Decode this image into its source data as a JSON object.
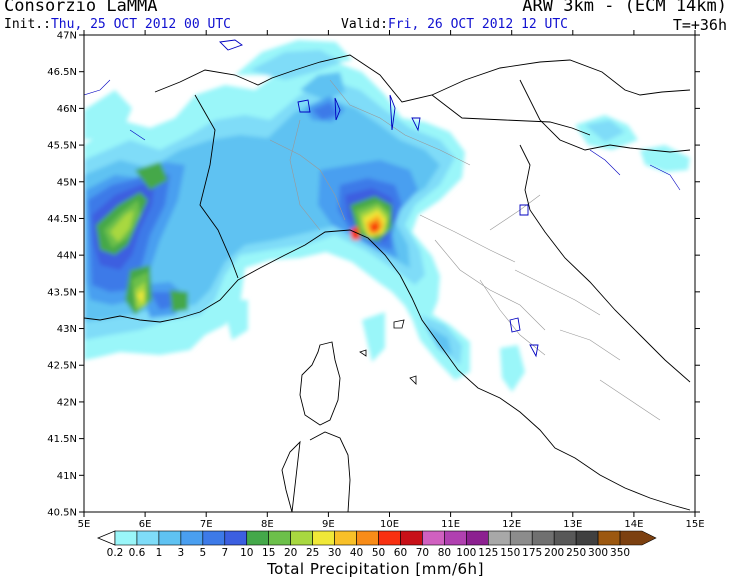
{
  "header": {
    "org": "Consorzio LaMMA",
    "model": "ARW 3km - (ECM 14km)",
    "init_label": "Init.:",
    "init_value": "Thu, 25 OCT 2012  00 UTC",
    "valid_label": "Valid:",
    "valid_value": "Fri, 26 OCT 2012  12 UTC",
    "step": "T=+36h"
  },
  "map": {
    "lat_labels": [
      "47N",
      "46.5N",
      "46N",
      "45.5N",
      "45N",
      "44.5N",
      "44N",
      "43.5N",
      "43N",
      "42.5N",
      "42N",
      "41.5N",
      "41N",
      "40.5N"
    ],
    "lon_labels": [
      "5E",
      "6E",
      "7E",
      "8E",
      "9E",
      "10E",
      "11E",
      "12E",
      "13E",
      "14E",
      "15E"
    ]
  },
  "colorbar": {
    "title": "Total Precipitation [mm/6h]",
    "levels": [
      "0.2",
      "0.6",
      "1",
      "3",
      "5",
      "7",
      "10",
      "15",
      "20",
      "25",
      "30",
      "40",
      "50",
      "60",
      "70",
      "80",
      "100",
      "125",
      "150",
      "175",
      "200",
      "250",
      "300",
      "350"
    ],
    "colors": [
      "#9af6f9",
      "#7fdcf8",
      "#5fc2f2",
      "#4a9ff0",
      "#3d7ae8",
      "#3c5fe0",
      "#44a84a",
      "#6cc04a",
      "#a8d840",
      "#f0e838",
      "#f8c028",
      "#f88c18",
      "#f83010",
      "#c81018",
      "#d060c0",
      "#b040b0",
      "#8c2090",
      "#a8a8a8",
      "#8c8c8c",
      "#707070",
      "#585858",
      "#404040",
      "#9c5810",
      "#7c4010"
    ]
  }
}
